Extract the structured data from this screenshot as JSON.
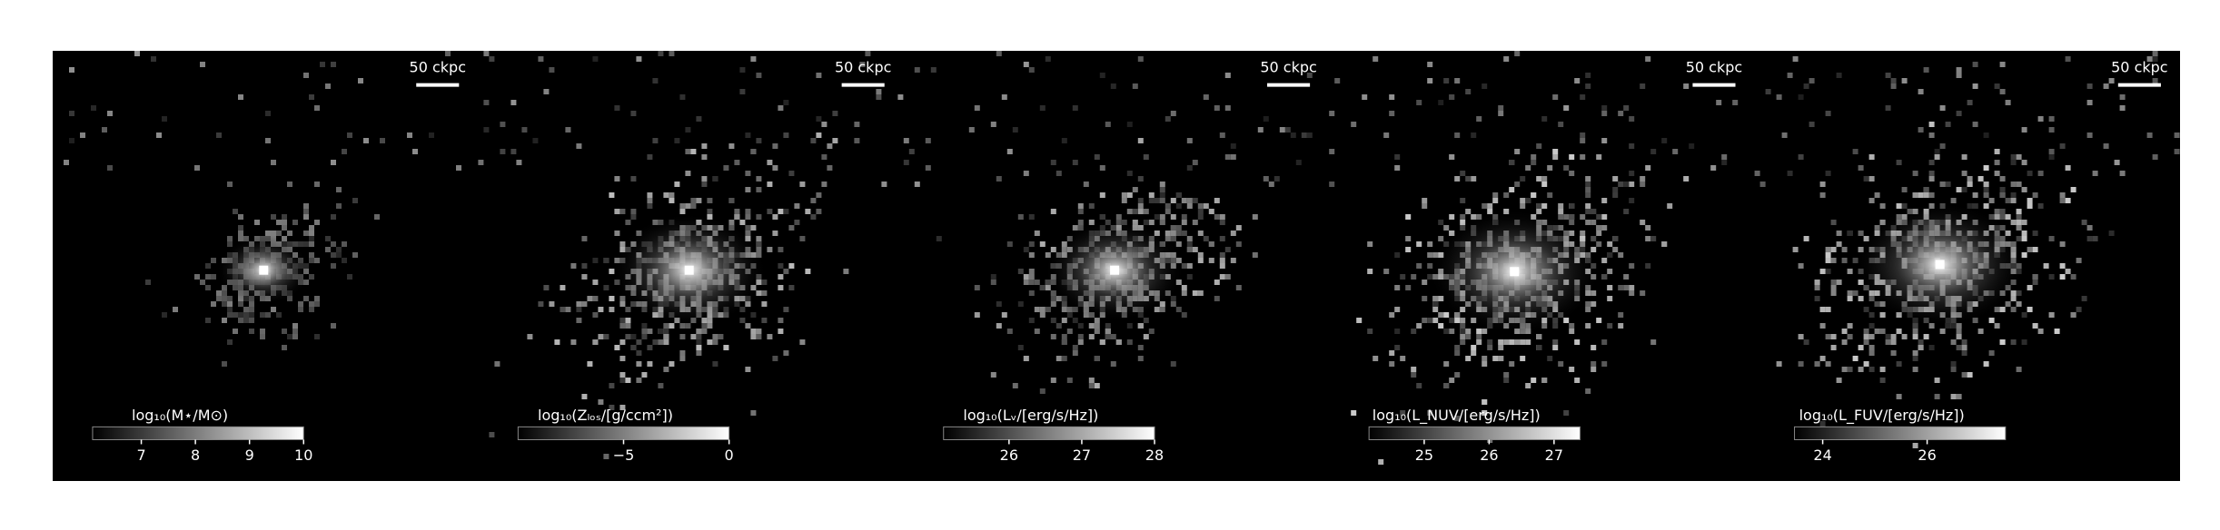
{
  "chart_data": {
    "type": "image-panels",
    "panels": [
      {
        "scale_bar": "50 ckpc",
        "colorbar": {
          "label": "log₁₀(M⋆/M⊙)",
          "lim": [
            6.1,
            10
          ],
          "ticks": [
            7,
            8,
            9,
            10
          ]
        }
      },
      {
        "scale_bar": "50 ckpc",
        "colorbar": {
          "label": "log₁₀(Zₗₒₛ/[g/ccm²])",
          "lim": [
            -10,
            0
          ],
          "ticks": [
            {
              "value": -5,
              "label": "−5"
            },
            0
          ]
        }
      },
      {
        "scale_bar": "50 ckpc",
        "colorbar": {
          "label": "log₁₀(Lᵥ/[erg/s/Hz])",
          "lim": [
            25.1,
            28
          ],
          "ticks": [
            26,
            27,
            28
          ]
        }
      },
      {
        "scale_bar": "50 ckpc",
        "colorbar": {
          "label": "log₁₀(L_NUV/[erg/s/Hz])",
          "lim": [
            24.15,
            27.4
          ],
          "ticks": [
            25,
            26,
            27
          ]
        }
      },
      {
        "scale_bar": "50 ckpc",
        "colorbar": {
          "label": "log₁₀(L_FUV/[erg/s/Hz])",
          "lim": [
            23.46,
            27.5
          ],
          "ticks": [
            24,
            26
          ]
        }
      }
    ]
  }
}
